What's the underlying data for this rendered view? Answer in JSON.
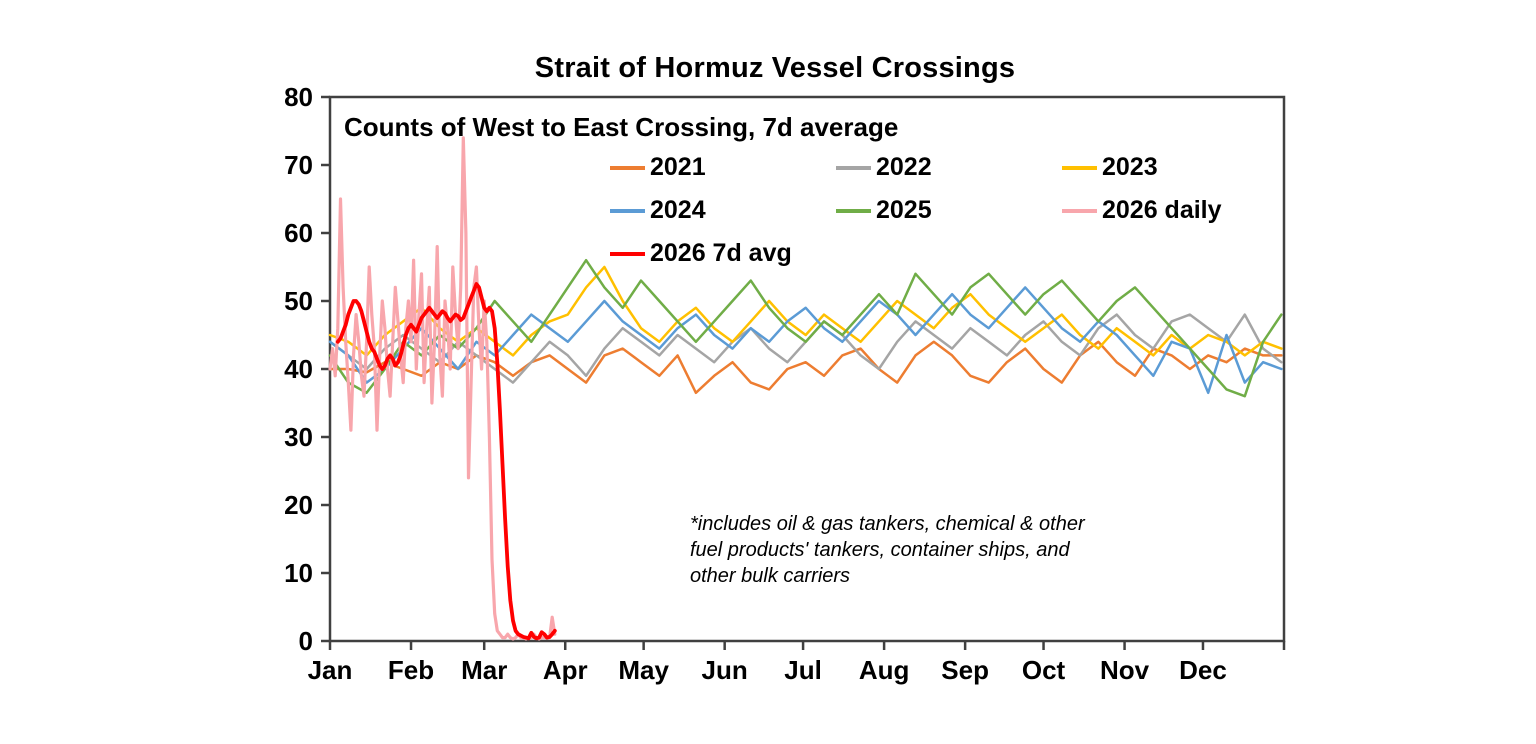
{
  "title": "Strait of Hormuz Vessel Crossings",
  "subtitle": "Counts of West to East Crossing, 7d average",
  "footnote_lines": [
    "*includes oil & gas tankers, chemical & other",
    "fuel products' tankers, container ships, and",
    "other bulk carriers"
  ],
  "colors": {
    "axis": "#404040",
    "series_2021": "#ED7D31",
    "series_2022": "#A5A5A5",
    "series_2023": "#FFC000",
    "series_2024": "#5B9BD5",
    "series_2025": "#70AD47",
    "series_2026_daily": "#F8A6AC",
    "series_2026_avg": "#FF0000"
  },
  "chart_data": {
    "type": "line",
    "title": "Strait of Hormuz Vessel Crossings",
    "subtitle": "Counts of West to East Crossing, 7d average",
    "xlabel": "",
    "ylabel": "",
    "grid": false,
    "legend_position": "top-center, 3 columns",
    "y_axis": {
      "range": [
        0,
        80
      ],
      "ticks": [
        0,
        10,
        20,
        30,
        40,
        50,
        60,
        70,
        80
      ]
    },
    "x_axis": {
      "unit": "day of year",
      "range_days": [
        0,
        365
      ],
      "tick_labels": [
        "Jan",
        "Feb",
        "Mar",
        "Apr",
        "May",
        "Jun",
        "Jul",
        "Aug",
        "Sep",
        "Oct",
        "Nov",
        "Dec"
      ],
      "month_start_days": [
        0,
        31,
        59,
        90,
        120,
        151,
        181,
        212,
        243,
        273,
        304,
        334
      ]
    },
    "legend": [
      {
        "label": "2021",
        "color": "#ED7D31"
      },
      {
        "label": "2022",
        "color": "#A5A5A5"
      },
      {
        "label": "2023",
        "color": "#FFC000"
      },
      {
        "label": "2024",
        "color": "#5B9BD5"
      },
      {
        "label": "2025",
        "color": "#70AD47"
      },
      {
        "label": "2026 daily",
        "color": "#F8A6AC"
      },
      {
        "label": "2026 7d avg",
        "color": "#FF0000"
      }
    ],
    "series": [
      {
        "name": "2021",
        "color": "#ED7D31",
        "x_start_day": 0,
        "x_step_days": 7,
        "values": [
          40,
          40,
          39.5,
          41,
          40,
          39,
          41,
          40,
          42,
          41,
          39,
          41,
          42,
          40,
          38,
          42,
          43,
          41,
          39,
          42,
          36.5,
          39,
          41,
          38,
          37,
          40,
          41,
          39,
          42,
          43,
          40,
          38,
          42,
          44,
          42,
          39,
          38,
          41,
          43,
          40,
          38,
          42,
          44,
          41,
          39,
          43,
          42,
          40,
          42,
          41,
          43,
          42,
          42
        ]
      },
      {
        "name": "2022",
        "color": "#A5A5A5",
        "x_start_day": 0,
        "x_step_days": 7,
        "values": [
          44,
          42,
          40,
          43,
          45,
          43,
          41,
          44,
          42,
          40,
          38,
          41,
          44,
          42,
          39,
          43,
          46,
          44,
          42,
          45,
          43,
          41,
          44,
          46,
          43,
          41,
          44,
          47,
          45,
          42,
          40,
          44,
          47,
          45,
          43,
          46,
          44,
          42,
          45,
          47,
          44,
          42,
          46,
          48,
          45,
          43,
          47,
          48,
          46,
          44,
          48,
          43,
          41
        ]
      },
      {
        "name": "2023",
        "color": "#FFC000",
        "x_start_day": 0,
        "x_step_days": 7,
        "values": [
          45,
          44,
          42,
          45,
          47,
          49,
          46,
          44,
          46,
          44,
          42,
          45,
          47,
          48,
          52,
          55,
          50,
          46,
          44,
          47,
          49,
          46,
          44,
          47,
          50,
          47,
          45,
          48,
          46,
          44,
          47,
          50,
          48,
          46,
          49,
          51,
          48,
          46,
          44,
          46,
          48,
          45,
          43,
          46,
          44,
          42,
          45,
          43,
          45,
          44,
          42,
          44,
          43
        ]
      },
      {
        "name": "2024",
        "color": "#5B9BD5",
        "x_start_day": 0,
        "x_step_days": 7,
        "values": [
          44,
          42,
          38,
          40,
          43,
          46,
          43,
          40,
          44,
          42,
          45,
          48,
          46,
          44,
          47,
          50,
          47,
          45,
          43,
          46,
          48,
          45,
          43,
          46,
          44,
          47,
          49,
          46,
          44,
          47,
          50,
          48,
          45,
          48,
          51,
          48,
          46,
          49,
          52,
          49,
          46,
          44,
          47,
          45,
          42,
          39,
          44,
          43,
          36.5,
          45,
          38,
          41,
          40
        ]
      },
      {
        "name": "2025",
        "color": "#70AD47",
        "x_start_day": 0,
        "x_step_days": 7,
        "values": [
          42,
          38,
          36.5,
          40,
          44,
          42,
          45,
          43,
          46,
          50,
          47,
          44,
          48,
          52,
          56,
          52,
          49,
          53,
          50,
          47,
          44,
          47,
          50,
          53,
          49,
          46,
          44,
          47,
          45,
          48,
          51,
          48,
          54,
          51,
          48,
          52,
          54,
          51,
          48,
          51,
          53,
          50,
          47,
          50,
          52,
          49,
          46,
          43,
          40,
          37,
          36,
          44,
          48
        ]
      },
      {
        "name": "2026 daily",
        "color": "#F8A6AC",
        "x_start_day": 0,
        "x_step_days": 1,
        "values": [
          40,
          43,
          39,
          46,
          65,
          52,
          44,
          38,
          31,
          42,
          48,
          44,
          39,
          36,
          44,
          55,
          48,
          43,
          31,
          42,
          50,
          46,
          40,
          36,
          44,
          52,
          47,
          42,
          38,
          46,
          50,
          44,
          56,
          40,
          48,
          54,
          38,
          46,
          52,
          35,
          44,
          58,
          42,
          36,
          50,
          46,
          40,
          55,
          48,
          43,
          52,
          74,
          60,
          24,
          38,
          52,
          55,
          46,
          40,
          50,
          44,
          30,
          12,
          4,
          1.5,
          1,
          0.5,
          0.5,
          1,
          0.5,
          0.3,
          0.5,
          1,
          0.5,
          0.5,
          0.3,
          0.5,
          0.5,
          1,
          0.5,
          0.3,
          0.5,
          0.5,
          0.5,
          0.5,
          3.5,
          1
        ]
      },
      {
        "name": "2026 7d avg",
        "color": "#FF0000",
        "x_start_day": 3,
        "x_step_days": 1,
        "values": [
          44,
          44.5,
          45.5,
          46.5,
          48,
          49,
          50,
          50,
          49.5,
          48.5,
          47,
          45.5,
          44,
          43,
          42.5,
          41.5,
          40.5,
          40,
          40.5,
          41.5,
          42,
          41.5,
          40.5,
          41,
          42,
          43.5,
          45,
          46,
          46.5,
          46,
          45.5,
          46.5,
          47.5,
          48,
          48.5,
          49,
          48.5,
          48,
          47.5,
          48,
          48.5,
          48.2,
          47.5,
          47,
          47.5,
          48,
          47.8,
          47.2,
          47.5,
          48.5,
          49.5,
          50.5,
          51.5,
          52.5,
          52,
          50.5,
          49,
          48.5,
          49,
          48.5,
          46,
          41,
          34,
          26,
          18,
          11,
          6,
          3,
          1.5,
          1,
          0.8,
          0.6,
          0.5,
          0.4,
          1.2,
          0.6,
          0.4,
          0.5,
          1.3,
          1,
          0.5,
          0.6,
          1,
          1.5
        ]
      }
    ]
  }
}
